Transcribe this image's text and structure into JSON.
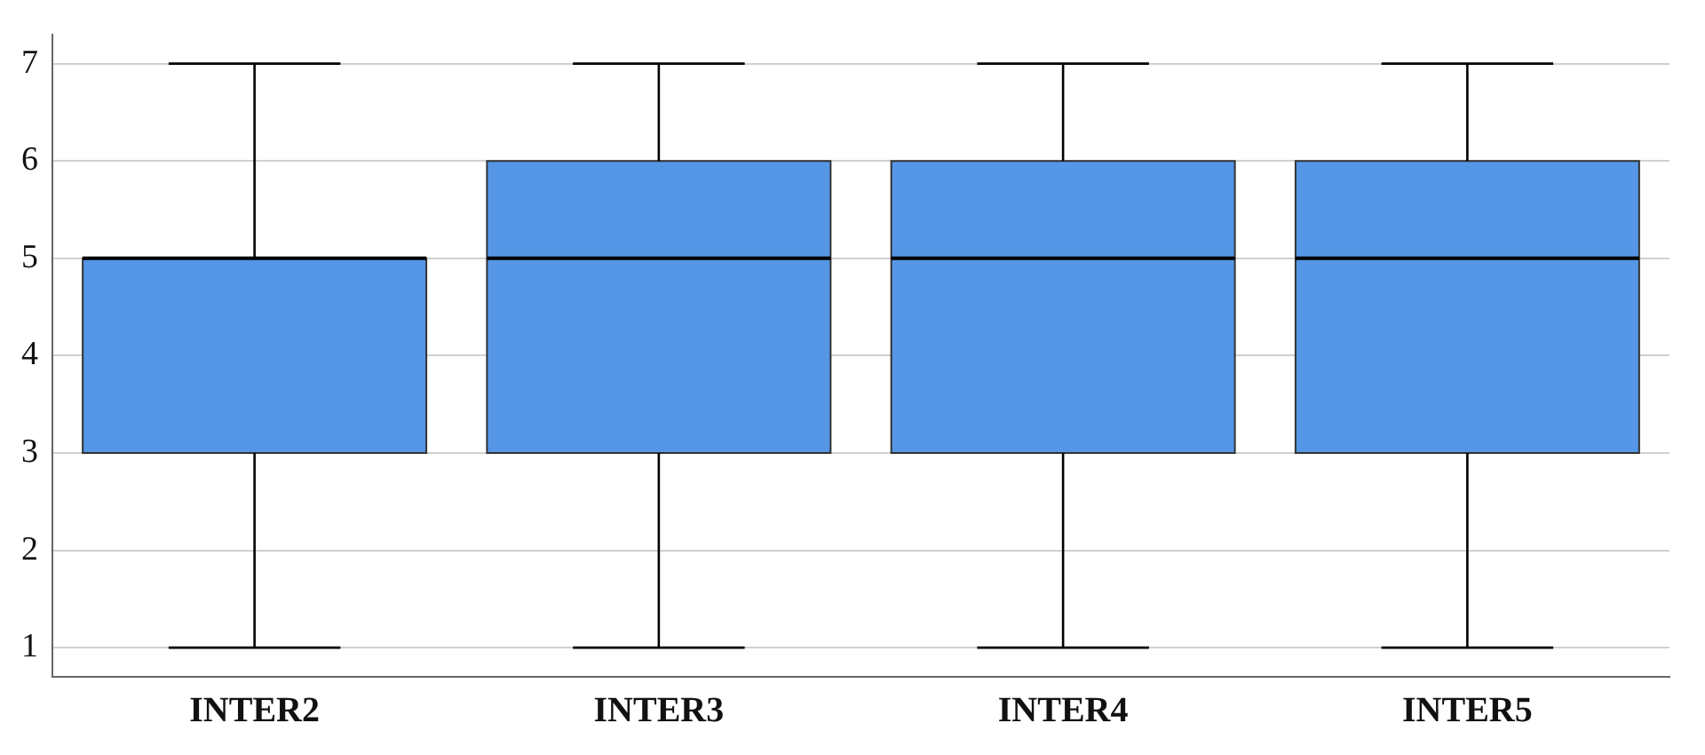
{
  "chart_data": {
    "type": "box",
    "categories": [
      "INTER2",
      "INTER3",
      "INTER4",
      "INTER5"
    ],
    "boxes": [
      {
        "low": 1,
        "q1": 3,
        "median": 5,
        "q3": 5,
        "high": 7
      },
      {
        "low": 1,
        "q1": 3,
        "median": 5,
        "q3": 6,
        "high": 7
      },
      {
        "low": 1,
        "q1": 3,
        "median": 5,
        "q3": 6,
        "high": 7
      },
      {
        "low": 1,
        "q1": 3,
        "median": 5,
        "q3": 6,
        "high": 7
      }
    ],
    "color": "#5596e6",
    "ylim": [
      0.7,
      7.3
    ],
    "yticks": [
      1,
      2,
      3,
      4,
      5,
      6,
      7
    ],
    "grid": "y"
  }
}
